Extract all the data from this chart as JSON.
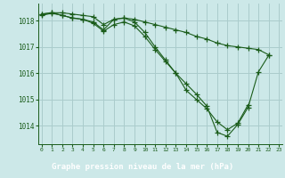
{
  "title": "Graphe pression niveau de la mer (hPa)",
  "background_color": "#cce8e8",
  "footer_color": "#2d6b2d",
  "line_color": "#1a5c1a",
  "grid_color": "#aacccc",
  "xlim": [
    -0.3,
    23.3
  ],
  "ylim": [
    1013.3,
    1018.65
  ],
  "yticks": [
    1014,
    1015,
    1016,
    1017,
    1018
  ],
  "xticks": [
    0,
    1,
    2,
    3,
    4,
    5,
    6,
    7,
    8,
    9,
    10,
    11,
    12,
    13,
    14,
    15,
    16,
    17,
    18,
    19,
    20,
    21,
    22,
    23
  ],
  "series1_x": [
    0,
    1,
    2,
    3,
    4,
    5,
    6,
    7,
    8,
    9,
    10,
    11,
    12,
    13,
    14,
    15,
    16,
    17,
    18,
    19,
    20,
    21,
    22
  ],
  "series1_y": [
    1018.25,
    1018.3,
    1018.3,
    1018.25,
    1018.2,
    1018.15,
    1017.85,
    1018.05,
    1018.1,
    1018.05,
    1017.95,
    1017.85,
    1017.75,
    1017.65,
    1017.55,
    1017.4,
    1017.3,
    1017.15,
    1017.05,
    1017.0,
    1016.95,
    1016.9,
    1016.7
  ],
  "series2_x": [
    0,
    1,
    2,
    3,
    4,
    5,
    6,
    7,
    8,
    9,
    10,
    11,
    12,
    13,
    14,
    15,
    16,
    17,
    18,
    19,
    20
  ],
  "series2_y": [
    1018.25,
    1018.3,
    1018.2,
    1018.1,
    1018.05,
    1017.95,
    1017.65,
    1018.05,
    1018.1,
    1017.95,
    1017.55,
    1017.0,
    1016.5,
    1016.0,
    1015.35,
    1015.0,
    1014.65,
    1014.15,
    1013.85,
    1014.1,
    1014.8
  ],
  "series3_x": [
    0,
    1,
    2,
    3,
    4,
    5,
    6,
    7,
    8,
    9,
    10,
    11,
    12,
    13,
    14,
    15,
    16,
    17,
    18,
    19,
    20,
    21,
    22
  ],
  "series3_y": [
    1018.2,
    1018.28,
    1018.2,
    1018.1,
    1018.05,
    1017.9,
    1017.6,
    1017.85,
    1017.95,
    1017.8,
    1017.4,
    1016.9,
    1016.45,
    1016.0,
    1015.6,
    1015.2,
    1014.75,
    1013.75,
    1013.6,
    1014.05,
    1014.7,
    1016.05,
    1016.68
  ]
}
